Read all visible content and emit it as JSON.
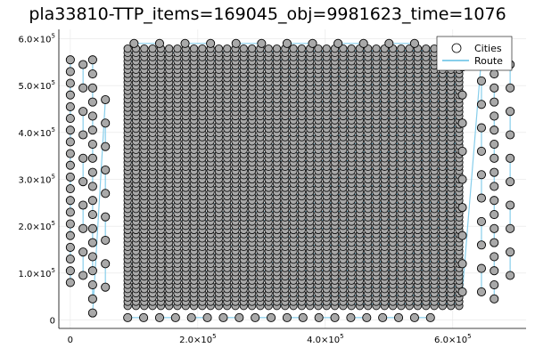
{
  "chart_data": {
    "type": "scatter",
    "title": "pla33810-TTP_items=169045_obj=9981623_time=1076",
    "xlabel": "",
    "ylabel": "",
    "xlim": [
      -18000,
      715000
    ],
    "ylim": [
      -18000,
      620000
    ],
    "x_ticks": [
      {
        "value": 0,
        "label": "0"
      },
      {
        "value": 200000,
        "label": "2.0×10",
        "exp": "5"
      },
      {
        "value": 400000,
        "label": "4.0×10",
        "exp": "5"
      },
      {
        "value": 600000,
        "label": "6.0×10",
        "exp": "5"
      }
    ],
    "y_ticks": [
      {
        "value": 0,
        "label": "0"
      },
      {
        "value": 100000,
        "label": "1.0×10",
        "exp": "5"
      },
      {
        "value": 200000,
        "label": "2.0×10",
        "exp": "5"
      },
      {
        "value": 300000,
        "label": "3.0×10",
        "exp": "5"
      },
      {
        "value": 400000,
        "label": "4.0×10",
        "exp": "5"
      },
      {
        "value": 500000,
        "label": "5.0×10",
        "exp": "5"
      },
      {
        "value": 600000,
        "label": "6.0×10",
        "exp": "5"
      }
    ],
    "grid": true,
    "legend_position": "top-right",
    "series": [
      {
        "name": "Cities",
        "kind": "scatter",
        "marker_fill": "#a9a9a9",
        "marker_edge": "#000000",
        "points": [
          [
            0,
            555000
          ],
          [
            0,
            530000
          ],
          [
            0,
            505000
          ],
          [
            0,
            480000
          ],
          [
            0,
            455000
          ],
          [
            0,
            430000
          ],
          [
            0,
            405000
          ],
          [
            0,
            380000
          ],
          [
            0,
            355000
          ],
          [
            0,
            330000
          ],
          [
            0,
            305000
          ],
          [
            0,
            280000
          ],
          [
            0,
            255000
          ],
          [
            0,
            230000
          ],
          [
            0,
            205000
          ],
          [
            0,
            180000
          ],
          [
            0,
            155000
          ],
          [
            0,
            130000
          ],
          [
            0,
            105000
          ],
          [
            0,
            80000
          ],
          [
            20000,
            545000
          ],
          [
            20000,
            495000
          ],
          [
            20000,
            445000
          ],
          [
            20000,
            395000
          ],
          [
            20000,
            345000
          ],
          [
            20000,
            295000
          ],
          [
            20000,
            245000
          ],
          [
            20000,
            195000
          ],
          [
            20000,
            145000
          ],
          [
            20000,
            95000
          ],
          [
            35000,
            555000
          ],
          [
            35000,
            525000
          ],
          [
            35000,
            495000
          ],
          [
            35000,
            465000
          ],
          [
            35000,
            435000
          ],
          [
            35000,
            405000
          ],
          [
            35000,
            375000
          ],
          [
            35000,
            345000
          ],
          [
            35000,
            315000
          ],
          [
            35000,
            285000
          ],
          [
            35000,
            255000
          ],
          [
            35000,
            225000
          ],
          [
            35000,
            195000
          ],
          [
            35000,
            165000
          ],
          [
            35000,
            135000
          ],
          [
            35000,
            105000
          ],
          [
            35000,
            75000
          ],
          [
            35000,
            45000
          ],
          [
            35000,
            15000
          ],
          [
            55000,
            470000
          ],
          [
            55000,
            420000
          ],
          [
            55000,
            370000
          ],
          [
            55000,
            320000
          ],
          [
            55000,
            270000
          ],
          [
            55000,
            220000
          ],
          [
            55000,
            170000
          ],
          [
            55000,
            120000
          ],
          [
            55000,
            70000
          ],
          [
            90000,
            5000
          ],
          [
            115000,
            5000
          ],
          [
            140000,
            5000
          ],
          [
            165000,
            5000
          ],
          [
            190000,
            5000
          ],
          [
            215000,
            5000
          ],
          [
            240000,
            5000
          ],
          [
            265000,
            5000
          ],
          [
            290000,
            5000
          ],
          [
            315000,
            5000
          ],
          [
            340000,
            5000
          ],
          [
            365000,
            5000
          ],
          [
            390000,
            5000
          ],
          [
            415000,
            5000
          ],
          [
            440000,
            5000
          ],
          [
            465000,
            5000
          ],
          [
            490000,
            5000
          ],
          [
            515000,
            5000
          ],
          [
            540000,
            5000
          ],
          [
            565000,
            5000
          ],
          [
            100000,
            590000
          ],
          [
            140000,
            590000
          ],
          [
            180000,
            590000
          ],
          [
            220000,
            590000
          ],
          [
            260000,
            590000
          ],
          [
            300000,
            590000
          ],
          [
            340000,
            590000
          ],
          [
            380000,
            590000
          ],
          [
            420000,
            590000
          ],
          [
            460000,
            590000
          ],
          [
            500000,
            590000
          ],
          [
            540000,
            590000
          ],
          [
            615000,
            540000
          ],
          [
            615000,
            480000
          ],
          [
            615000,
            420000
          ],
          [
            615000,
            360000
          ],
          [
            615000,
            300000
          ],
          [
            615000,
            240000
          ],
          [
            615000,
            180000
          ],
          [
            615000,
            120000
          ],
          [
            615000,
            60000
          ],
          [
            645000,
            560000
          ],
          [
            645000,
            510000
          ],
          [
            645000,
            460000
          ],
          [
            645000,
            410000
          ],
          [
            645000,
            360000
          ],
          [
            645000,
            310000
          ],
          [
            645000,
            260000
          ],
          [
            645000,
            210000
          ],
          [
            645000,
            160000
          ],
          [
            645000,
            110000
          ],
          [
            645000,
            60000
          ],
          [
            665000,
            555000
          ],
          [
            665000,
            525000
          ],
          [
            665000,
            495000
          ],
          [
            665000,
            465000
          ],
          [
            665000,
            435000
          ],
          [
            665000,
            405000
          ],
          [
            665000,
            375000
          ],
          [
            665000,
            345000
          ],
          [
            665000,
            315000
          ],
          [
            665000,
            285000
          ],
          [
            665000,
            255000
          ],
          [
            665000,
            225000
          ],
          [
            665000,
            195000
          ],
          [
            665000,
            165000
          ],
          [
            665000,
            135000
          ],
          [
            665000,
            105000
          ],
          [
            665000,
            75000
          ],
          [
            665000,
            45000
          ],
          [
            690000,
            545000
          ],
          [
            690000,
            495000
          ],
          [
            690000,
            445000
          ],
          [
            690000,
            395000
          ],
          [
            690000,
            345000
          ],
          [
            690000,
            295000
          ],
          [
            690000,
            245000
          ],
          [
            690000,
            195000
          ],
          [
            690000,
            145000
          ],
          [
            690000,
            95000
          ]
        ]
      },
      {
        "name": "Route",
        "kind": "line",
        "color": "#87ceeb"
      }
    ],
    "dense_block": {
      "x_range": [
        90000,
        610000
      ],
      "y_range": [
        30000,
        580000
      ],
      "row_spacing": 9000,
      "col_spacing": 13000
    }
  }
}
